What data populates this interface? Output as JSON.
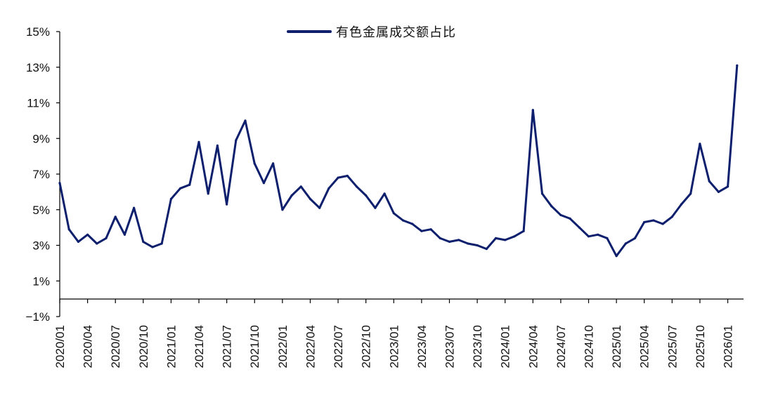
{
  "chart_data": {
    "type": "line",
    "title": "",
    "xlabel": "",
    "ylabel": "",
    "ylim": [
      -1,
      15
    ],
    "yticks": [
      "−1%",
      "1%",
      "3%",
      "5%",
      "7%",
      "9%",
      "11%",
      "13%",
      "15%"
    ],
    "xticks": [
      "2020/01",
      "2020/04",
      "2020/07",
      "2020/10",
      "2021/01",
      "2021/04",
      "2021/07",
      "2021/10",
      "2022/01",
      "2022/04",
      "2022/07",
      "2022/10",
      "2023/01",
      "2023/04",
      "2023/07",
      "2023/10",
      "2024/01",
      "2024/04",
      "2024/07",
      "2024/10",
      "2025/01",
      "2025/04",
      "2025/07",
      "2025/10",
      "2026/01"
    ],
    "grid": false,
    "legend_position": "top-center",
    "series": [
      {
        "name": "有色金属成交额占比",
        "color": "#0d1f6d",
        "x": [
          "2020/01",
          "2020/02",
          "2020/03",
          "2020/04",
          "2020/05",
          "2020/06",
          "2020/07",
          "2020/08",
          "2020/09",
          "2020/10",
          "2020/11",
          "2020/12",
          "2021/01",
          "2021/02",
          "2021/03",
          "2021/04",
          "2021/05",
          "2021/06",
          "2021/07",
          "2021/08",
          "2021/09",
          "2021/10",
          "2021/11",
          "2021/12",
          "2022/01",
          "2022/02",
          "2022/03",
          "2022/04",
          "2022/05",
          "2022/06",
          "2022/07",
          "2022/08",
          "2022/09",
          "2022/10",
          "2022/11",
          "2022/12",
          "2023/01",
          "2023/02",
          "2023/03",
          "2023/04",
          "2023/05",
          "2023/06",
          "2023/07",
          "2023/08",
          "2023/09",
          "2023/10",
          "2023/11",
          "2023/12",
          "2024/01",
          "2024/02",
          "2024/03",
          "2024/04",
          "2024/05",
          "2024/06",
          "2024/07",
          "2024/08",
          "2024/09",
          "2024/10",
          "2024/11",
          "2024/12",
          "2025/01",
          "2025/02",
          "2025/03",
          "2025/04",
          "2025/05",
          "2025/06",
          "2025/07",
          "2025/08",
          "2025/09",
          "2025/10",
          "2025/11",
          "2025/12",
          "2026/01",
          "2026/02"
        ],
        "values": [
          6.5,
          3.9,
          3.2,
          3.6,
          3.1,
          3.4,
          4.6,
          3.6,
          5.1,
          3.2,
          2.9,
          3.1,
          5.6,
          6.2,
          6.4,
          8.8,
          5.9,
          8.6,
          5.3,
          8.9,
          10.0,
          7.6,
          6.5,
          7.6,
          5.0,
          5.8,
          6.3,
          5.6,
          5.1,
          6.2,
          6.8,
          6.9,
          6.3,
          5.8,
          5.1,
          5.9,
          4.8,
          4.4,
          4.2,
          3.8,
          3.9,
          3.4,
          3.2,
          3.3,
          3.1,
          3.0,
          2.8,
          3.4,
          3.3,
          3.5,
          3.8,
          10.6,
          5.9,
          5.2,
          4.7,
          4.5,
          4.0,
          3.5,
          3.6,
          3.4,
          2.4,
          3.1,
          3.4,
          4.3,
          4.4,
          4.2,
          4.6,
          5.3,
          5.9,
          8.7,
          6.6,
          6.0,
          6.3,
          13.1
        ]
      }
    ]
  }
}
